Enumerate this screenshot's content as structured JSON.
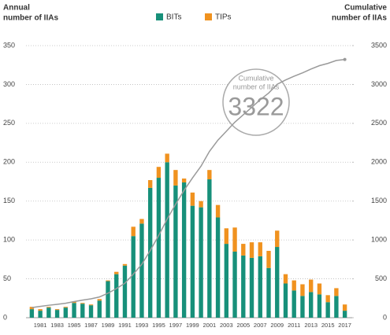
{
  "chart_data": {
    "type": "bar",
    "stacked": true,
    "y_label": [
      "Annual",
      "number of IIAs"
    ],
    "y2_label": [
      "Cumulative",
      "number of IIAs"
    ],
    "categories": [
      null,
      "1981",
      null,
      "1983",
      null,
      "1985",
      null,
      "1987",
      null,
      "1989",
      null,
      "1991",
      null,
      "1993",
      null,
      "1995",
      null,
      "1997",
      null,
      "1999",
      null,
      "2001",
      null,
      "2003",
      null,
      "2005",
      null,
      "2007",
      null,
      "2009",
      null,
      "2011",
      null,
      "2013",
      null,
      "2015",
      null,
      "2017"
    ],
    "series": [
      {
        "name": "BITs",
        "color": "#17907a",
        "values": [
          11,
          9,
          13,
          10,
          13,
          19,
          18,
          16,
          22,
          47,
          56,
          67,
          105,
          121,
          167,
          180,
          200,
          170,
          174,
          144,
          142,
          178,
          129,
          95,
          85,
          80,
          77,
          79,
          64,
          91,
          44,
          35,
          28,
          33,
          30,
          20,
          28,
          9
        ]
      },
      {
        "name": "TIPs",
        "color": "#f0921f",
        "values": [
          3,
          2,
          1,
          1,
          1,
          2,
          1,
          1,
          2,
          1,
          3,
          2,
          12,
          6,
          10,
          14,
          11,
          20,
          5,
          17,
          8,
          12,
          16,
          20,
          31,
          15,
          20,
          18,
          22,
          21,
          12,
          13,
          15,
          16,
          14,
          9,
          10,
          8
        ]
      },
      {
        "type": "line",
        "axis": "y2",
        "color": "#9a9a9a",
        "values": [
          130,
          145,
          160,
          172,
          186,
          207,
          226,
          243,
          267,
          315,
          374,
          443,
          560,
          687,
          864,
          1058,
          1269,
          1459,
          1638,
          1799,
          1949,
          2139,
          2284,
          2399,
          2515,
          2610,
          2707,
          2804,
          2890,
          3002,
          3058,
          3106,
          3149,
          3198,
          3242,
          3271,
          3309,
          3322
        ]
      }
    ],
    "ylim": [
      0,
      350
    ],
    "yticks": [
      0,
      50,
      100,
      150,
      200,
      250,
      300,
      350
    ],
    "y2lim": [
      0,
      3500
    ],
    "y2ticks": [
      0,
      500,
      1000,
      1500,
      2000,
      2500,
      3000,
      3500
    ],
    "grid": true,
    "legend": "top",
    "annotation": {
      "label": [
        "Cumulative",
        "number of IIAs"
      ],
      "value": 3322
    }
  }
}
